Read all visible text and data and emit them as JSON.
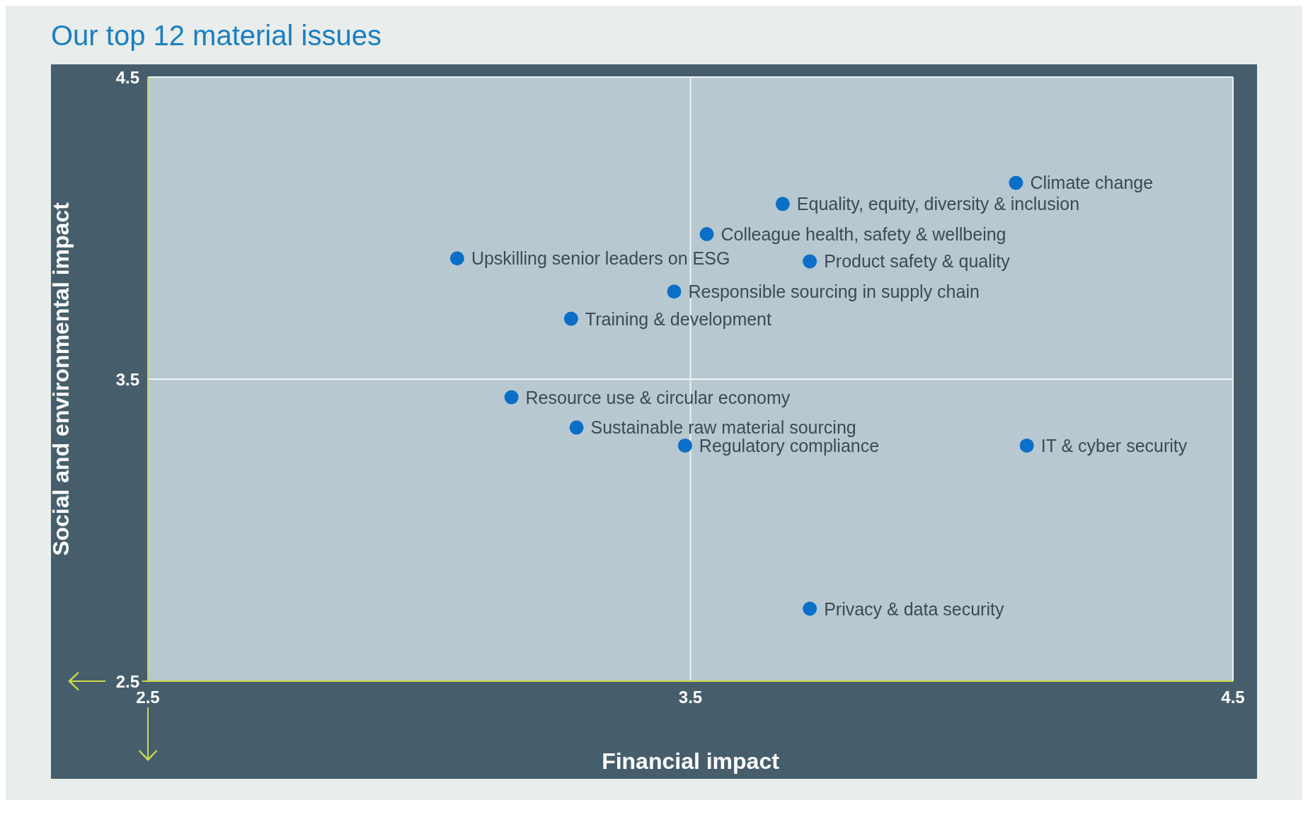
{
  "chart_data": {
    "type": "scatter",
    "title": "Our top 12 material issues",
    "xlabel": "Financial impact",
    "ylabel": "Social and environmental impact",
    "x": [
      4.1,
      3.67,
      3.53,
      3.07,
      3.72,
      3.47,
      3.28,
      3.17,
      3.29,
      3.49,
      4.12,
      3.72
    ],
    "series": [
      {
        "color": "#0b6fc7",
        "values": [
          4.15,
          4.08,
          3.98,
          3.9,
          3.89,
          3.79,
          3.7,
          3.44,
          3.34,
          3.28,
          3.28,
          2.74
        ]
      }
    ],
    "xlim": [
      2.5,
      4.5
    ],
    "ylim": [
      2.5,
      4.5
    ],
    "xticks": [
      2.5,
      3.5,
      4.5
    ],
    "yticks": [
      2.5,
      3.5,
      4.5
    ],
    "grid": true,
    "marker": "circle",
    "annotations": [
      {
        "text": "Climate change",
        "x": 4.1,
        "y": 4.15
      },
      {
        "text": "Equality, equity, diversity & inclusion",
        "x": 3.67,
        "y": 4.08
      },
      {
        "text": "Colleague health, safety & wellbeing",
        "x": 3.53,
        "y": 3.98
      },
      {
        "text": "Upskilling senior leaders on ESG",
        "x": 3.07,
        "y": 3.9
      },
      {
        "text": "Product safety & quality",
        "x": 3.72,
        "y": 3.89
      },
      {
        "text": "Responsible sourcing in supply chain",
        "x": 3.47,
        "y": 3.79
      },
      {
        "text": "Training & development",
        "x": 3.28,
        "y": 3.7
      },
      {
        "text": "Resource use & circular economy",
        "x": 3.17,
        "y": 3.44
      },
      {
        "text": "Sustainable raw material sourcing",
        "x": 3.29,
        "y": 3.34
      },
      {
        "text": "Regulatory compliance",
        "x": 3.49,
        "y": 3.28
      },
      {
        "text": "IT & cyber security",
        "x": 4.12,
        "y": 3.28
      },
      {
        "text": "Privacy & data security",
        "x": 3.72,
        "y": 2.74
      }
    ]
  }
}
